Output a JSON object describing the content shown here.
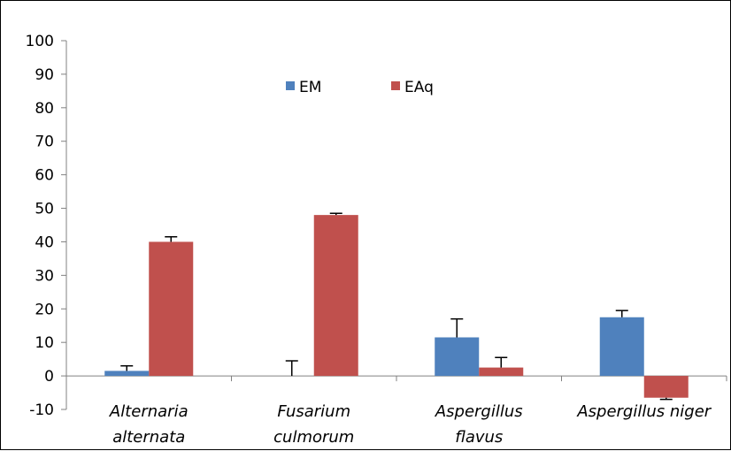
{
  "chart_data": {
    "type": "bar",
    "categories": [
      [
        "Alternaria",
        "alternata"
      ],
      [
        "Fusarium",
        "culmorum"
      ],
      [
        "Aspergillus",
        "flavus"
      ],
      [
        "Aspergillus niger"
      ]
    ],
    "series": [
      {
        "name": "EM",
        "color": "#4f81bd",
        "values": [
          1.5,
          0,
          11.5,
          17.5
        ],
        "errors": [
          1.5,
          4.5,
          5.5,
          2
        ]
      },
      {
        "name": "EAq",
        "color": "#c0504d",
        "values": [
          40,
          48,
          2.5,
          -6.5
        ],
        "errors": [
          1.5,
          0.5,
          3,
          0.5
        ]
      }
    ],
    "ylim": [
      -10,
      100
    ],
    "yticks": [
      -10,
      0,
      10,
      20,
      30,
      40,
      50,
      60,
      70,
      80,
      90,
      100
    ],
    "legend_position": "top-center",
    "grid": false
  }
}
